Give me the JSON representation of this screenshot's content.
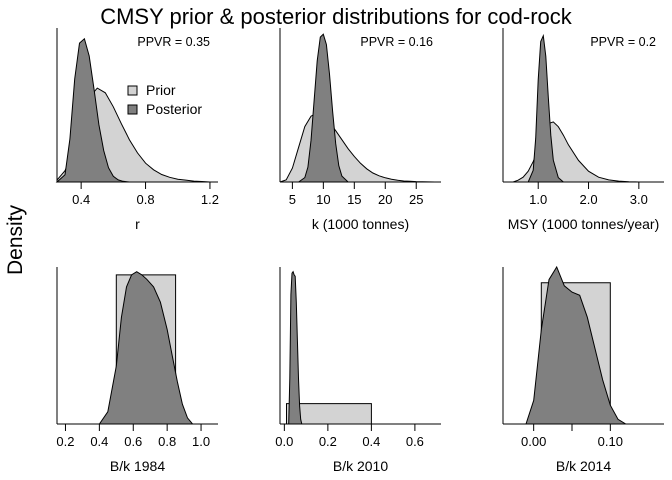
{
  "title": "CMSY prior & posterior distributions for cod-rock",
  "y_label": "Density",
  "colors": {
    "prior": "#d3d3d3",
    "posterior": "#808080",
    "outline": "#000000"
  },
  "legend": {
    "prior": "Prior",
    "posterior": "Posterior"
  },
  "chart_data": [
    {
      "type": "area",
      "panel": "r",
      "xlabel": "r",
      "annotation": "PPVR = 0.35",
      "xlim": [
        0.25,
        1.25
      ],
      "xticks": [
        0.4,
        0.8,
        1.2
      ],
      "xtick_labels": [
        "0.4",
        "0.8",
        "1.2"
      ],
      "legend": true,
      "series": [
        {
          "role": "prior",
          "x": [
            0.25,
            0.3,
            0.35,
            0.4,
            0.45,
            0.5,
            0.55,
            0.6,
            0.65,
            0.7,
            0.75,
            0.8,
            0.85,
            0.9,
            0.95,
            1.0,
            1.05,
            1.1,
            1.15,
            1.2
          ],
          "y": [
            0.02,
            0.12,
            0.32,
            0.62,
            0.9,
            1.0,
            0.95,
            0.8,
            0.62,
            0.45,
            0.31,
            0.2,
            0.13,
            0.08,
            0.05,
            0.03,
            0.02,
            0.01,
            0.005,
            0.0
          ]
        },
        {
          "role": "posterior",
          "x": [
            0.25,
            0.3,
            0.33,
            0.36,
            0.39,
            0.42,
            0.45,
            0.48,
            0.51,
            0.54,
            0.57,
            0.6,
            0.63,
            0.66,
            0.7
          ],
          "y": [
            0.0,
            0.05,
            0.3,
            0.72,
            0.97,
            1.0,
            0.88,
            0.65,
            0.4,
            0.22,
            0.1,
            0.04,
            0.015,
            0.005,
            0.0
          ]
        }
      ]
    },
    {
      "type": "area",
      "panel": "k",
      "xlabel": "k (1000 tonnes)",
      "annotation": "PPVR = 0.16",
      "xlim": [
        3,
        29
      ],
      "xticks": [
        5,
        10,
        15,
        20,
        25
      ],
      "xtick_labels": [
        "5",
        "10",
        "15",
        "20",
        "25"
      ],
      "series": [
        {
          "role": "prior",
          "x": [
            3,
            4,
            5,
            6,
            7,
            8,
            9,
            10,
            11,
            12,
            13,
            14,
            15,
            16,
            17,
            18,
            19,
            20,
            21,
            22,
            23,
            24,
            25,
            26,
            27,
            28
          ],
          "y": [
            0.0,
            0.03,
            0.2,
            0.5,
            0.8,
            0.95,
            1.0,
            0.96,
            0.86,
            0.74,
            0.61,
            0.48,
            0.37,
            0.27,
            0.19,
            0.13,
            0.09,
            0.06,
            0.04,
            0.025,
            0.015,
            0.01,
            0.006,
            0.004,
            0.002,
            0.0
          ]
        },
        {
          "role": "posterior",
          "x": [
            6.0,
            7.0,
            7.5,
            8.0,
            8.5,
            9.0,
            9.5,
            10.0,
            10.5,
            11.0,
            11.5,
            12.0,
            12.5,
            13.0,
            14.0
          ],
          "y": [
            0.0,
            0.03,
            0.1,
            0.28,
            0.55,
            0.82,
            0.98,
            1.0,
            0.93,
            0.73,
            0.48,
            0.26,
            0.11,
            0.04,
            0.0
          ]
        }
      ]
    },
    {
      "type": "area",
      "panel": "msy",
      "xlabel": "MSY (1000 tonnes/year)",
      "annotation": "PPVR = 0.2",
      "xlim": [
        0.3,
        3.5
      ],
      "xticks": [
        1.0,
        2.0,
        3.0
      ],
      "xtick_labels": [
        "1.0",
        "2.0",
        "3.0"
      ],
      "series": [
        {
          "role": "prior",
          "x": [
            0.5,
            0.6,
            0.7,
            0.8,
            0.9,
            1.0,
            1.1,
            1.2,
            1.3,
            1.4,
            1.5,
            1.6,
            1.8,
            2.0,
            2.2,
            2.4,
            2.6,
            2.8,
            3.0
          ],
          "y": [
            0.0,
            0.03,
            0.08,
            0.18,
            0.34,
            0.55,
            0.8,
            0.97,
            1.0,
            0.92,
            0.78,
            0.62,
            0.36,
            0.18,
            0.08,
            0.035,
            0.015,
            0.005,
            0.0
          ]
        },
        {
          "role": "posterior",
          "x": [
            0.8,
            0.9,
            0.95,
            1.0,
            1.05,
            1.1,
            1.15,
            1.2,
            1.25,
            1.3,
            1.4,
            1.5
          ],
          "y": [
            0.0,
            0.08,
            0.3,
            0.7,
            0.96,
            1.0,
            0.86,
            0.58,
            0.32,
            0.15,
            0.03,
            0.0
          ]
        }
      ]
    },
    {
      "type": "area",
      "panel": "bk1984",
      "xlabel": "B/k 1984",
      "xlim": [
        0.15,
        1.1
      ],
      "xticks": [
        0.2,
        0.4,
        0.6,
        0.8,
        1.0
      ],
      "xtick_labels": [
        "0.2",
        "0.4",
        "0.6",
        "0.8",
        "1.0"
      ],
      "series": [
        {
          "role": "prior",
          "x": [
            0.5,
            0.5,
            0.85,
            0.85
          ],
          "y": [
            0,
            0.95,
            0.95,
            0
          ]
        },
        {
          "role": "posterior",
          "x": [
            0.4,
            0.45,
            0.5,
            0.53,
            0.56,
            0.59,
            0.62,
            0.65,
            0.68,
            0.72,
            0.76,
            0.8,
            0.83,
            0.86,
            0.89,
            0.92,
            0.95
          ],
          "y": [
            0.0,
            0.08,
            0.38,
            0.7,
            0.9,
            0.98,
            1.0,
            0.98,
            0.95,
            0.9,
            0.8,
            0.62,
            0.45,
            0.28,
            0.13,
            0.04,
            0.0
          ]
        }
      ]
    },
    {
      "type": "area",
      "panel": "bk2010",
      "xlabel": "B/k 2010",
      "xlim": [
        -0.02,
        0.72
      ],
      "xticks": [
        0.0,
        0.2,
        0.4,
        0.6
      ],
      "xtick_labels": [
        "0.0",
        "0.2",
        "0.4",
        "0.6"
      ],
      "series": [
        {
          "role": "prior",
          "x": [
            0.01,
            0.01,
            0.4,
            0.4
          ],
          "y": [
            0,
            0.13,
            0.13,
            0
          ]
        },
        {
          "role": "posterior",
          "x": [
            0.02,
            0.025,
            0.03,
            0.035,
            0.04,
            0.045,
            0.05,
            0.055,
            0.06,
            0.065,
            0.07,
            0.075,
            0.08
          ],
          "y": [
            0.0,
            0.3,
            0.85,
            0.99,
            1.0,
            0.98,
            0.97,
            0.8,
            0.55,
            0.3,
            0.12,
            0.03,
            0.0
          ]
        }
      ]
    },
    {
      "type": "area",
      "panel": "bk2014",
      "xlabel": "B/k 2014",
      "xlim": [
        -0.04,
        0.17
      ],
      "xticks": [
        0.0,
        0.05,
        0.1
      ],
      "xtick_labels": [
        "0.00",
        "",
        "0.10"
      ],
      "series": [
        {
          "role": "prior",
          "x": [
            0.01,
            0.01,
            0.1,
            0.1
          ],
          "y": [
            0,
            0.9,
            0.9,
            0
          ]
        },
        {
          "role": "posterior",
          "x": [
            -0.01,
            0.0,
            0.01,
            0.02,
            0.03,
            0.04,
            0.05,
            0.06,
            0.07,
            0.08,
            0.09,
            0.1,
            0.11,
            0.12
          ],
          "y": [
            0.0,
            0.15,
            0.6,
            0.92,
            1.0,
            0.88,
            0.84,
            0.82,
            0.68,
            0.48,
            0.28,
            0.12,
            0.03,
            0.0
          ]
        }
      ]
    }
  ]
}
